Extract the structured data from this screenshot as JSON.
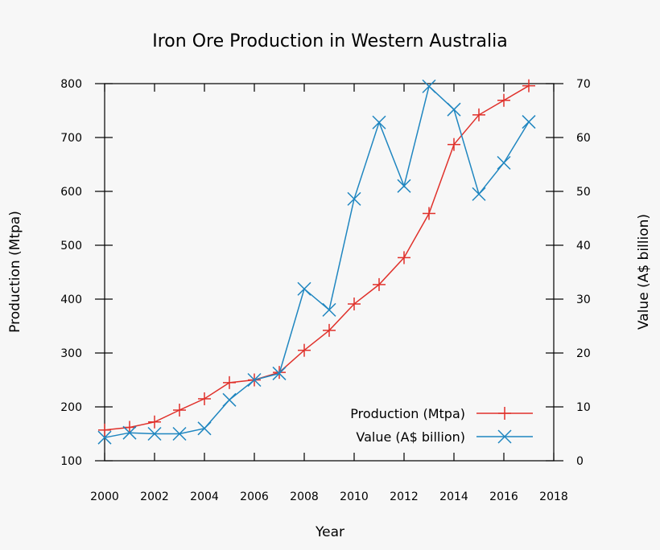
{
  "chart_data": {
    "type": "line",
    "title": "Iron Ore Production in Western Australia",
    "xlabel": "Year",
    "ylabel_left": "Production (Mtpa)",
    "ylabel_right": "Value (A$ billion)",
    "xlim": [
      2000,
      2018
    ],
    "ylim_left": [
      100,
      800
    ],
    "ylim_right": [
      0,
      70
    ],
    "grid": false,
    "legend_position": "bottom-right",
    "x_ticks": [
      2000,
      2002,
      2004,
      2006,
      2008,
      2010,
      2012,
      2014,
      2016,
      2018
    ],
    "y_left_ticks": [
      100,
      200,
      300,
      400,
      500,
      600,
      700,
      800
    ],
    "y_right_ticks": [
      0,
      10,
      20,
      30,
      40,
      50,
      60,
      70
    ],
    "x": [
      2000,
      2001,
      2002,
      2003,
      2004,
      2005,
      2006,
      2007,
      2008,
      2009,
      2010,
      2011,
      2012,
      2013,
      2014,
      2015,
      2016,
      2017
    ],
    "series": [
      {
        "name": "Production (Mtpa)",
        "axis": "left",
        "color": "#e0312b",
        "marker": "plus",
        "values": [
          157,
          162,
          172,
          194,
          215,
          245,
          250,
          264,
          305,
          342,
          391,
          427,
          477,
          559,
          687,
          742,
          769,
          796
        ]
      },
      {
        "name": "Value (A$ billion)",
        "axis": "right",
        "color": "#1f86c0",
        "marker": "x",
        "values": [
          4.3,
          5.2,
          5.0,
          5.0,
          6.0,
          11.3,
          15.0,
          16.2,
          31.9,
          28.0,
          48.6,
          62.8,
          51.0,
          69.5,
          65.2,
          49.5,
          55.3,
          62.9
        ]
      }
    ]
  }
}
